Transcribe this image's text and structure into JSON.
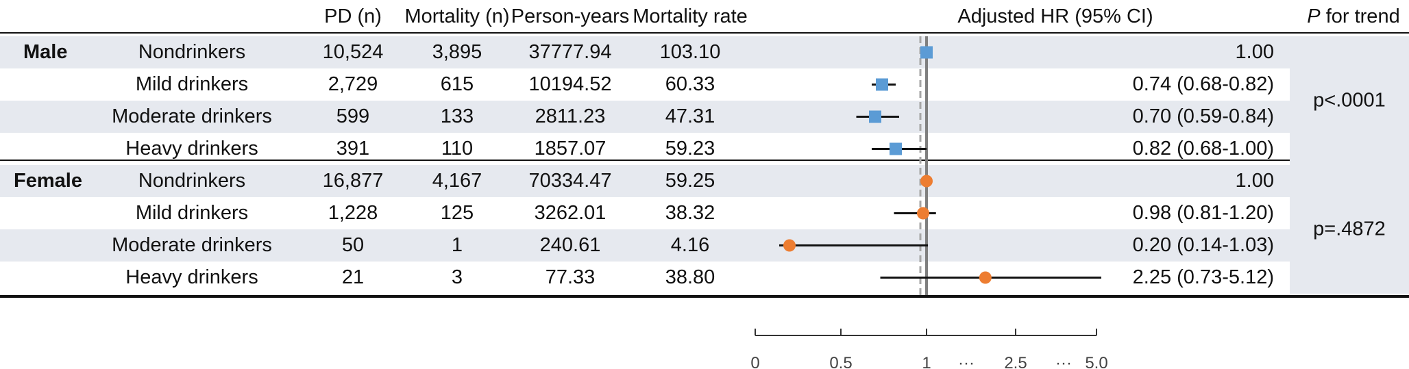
{
  "header": {
    "pd": "PD (n)",
    "mortality": "Mortality (n)",
    "person_years": "Person-years",
    "mortality_rate": "Mortality rate",
    "hr": "Adjusted HR (95% CI)",
    "p_italic": "P",
    "p_rest": " for trend"
  },
  "groups": [
    {
      "name": "Male",
      "p_trend": "p<.0001",
      "marker": "square",
      "color": "#5b9bd5",
      "rows": [
        {
          "label": "Nondrinkers",
          "pd": "10,524",
          "mortality": "3,895",
          "person_years": "37777.94",
          "rate": "103.10",
          "hr_text": "1.00"
        },
        {
          "label": "Mild drinkers",
          "pd": "2,729",
          "mortality": "615",
          "person_years": "10194.52",
          "rate": "60.33",
          "hr_text": "0.74 (0.68-0.82)"
        },
        {
          "label": "Moderate drinkers",
          "pd": "599",
          "mortality": "133",
          "person_years": "2811.23",
          "rate": "47.31",
          "hr_text": "0.70 (0.59-0.84)"
        },
        {
          "label": "Heavy drinkers",
          "pd": "391",
          "mortality": "110",
          "person_years": "1857.07",
          "rate": "59.23",
          "hr_text": "0.82 (0.68-1.00)"
        }
      ]
    },
    {
      "name": "Female",
      "p_trend": "p=.4872",
      "marker": "circle",
      "color": "#ed7d31",
      "rows": [
        {
          "label": "Nondrinkers",
          "pd": "16,877",
          "mortality": "4,167",
          "person_years": "70334.47",
          "rate": "59.25",
          "hr_text": "1.00"
        },
        {
          "label": "Mild drinkers",
          "pd": "1,228",
          "mortality": "125",
          "person_years": "3262.01",
          "rate": "38.32",
          "hr_text": "0.98 (0.81-1.20)"
        },
        {
          "label": "Moderate drinkers",
          "pd": "50",
          "mortality": "1",
          "person_years": "240.61",
          "rate": "4.16",
          "hr_text": "0.20 (0.14-1.03)"
        },
        {
          "label": "Heavy drinkers",
          "pd": "21",
          "mortality": "3",
          "person_years": "77.33",
          "rate": "38.80",
          "hr_text": "2.25 (0.73-5.12)"
        }
      ]
    }
  ],
  "chart_data": {
    "type": "scatter",
    "xlabel": "",
    "ylabel": "",
    "reference_line": 1,
    "x_ticks": [
      "0",
      "0.5",
      "1",
      "···",
      "2.5",
      "···",
      "5.0"
    ],
    "series": [
      {
        "name": "Male",
        "marker": "square",
        "color": "#5b9bd5",
        "points": [
          {
            "hr": 1.0,
            "low": 1.0,
            "high": 1.0
          },
          {
            "hr": 0.74,
            "low": 0.68,
            "high": 0.82
          },
          {
            "hr": 0.7,
            "low": 0.59,
            "high": 0.84
          },
          {
            "hr": 0.82,
            "low": 0.68,
            "high": 1.0
          }
        ]
      },
      {
        "name": "Female",
        "marker": "circle",
        "color": "#ed7d31",
        "points": [
          {
            "hr": 1.0,
            "low": 1.0,
            "high": 1.0
          },
          {
            "hr": 0.98,
            "low": 0.81,
            "high": 1.2
          },
          {
            "hr": 0.2,
            "low": 0.14,
            "high": 1.03
          },
          {
            "hr": 2.25,
            "low": 0.73,
            "high": 5.12
          }
        ]
      }
    ],
    "grid": false
  }
}
